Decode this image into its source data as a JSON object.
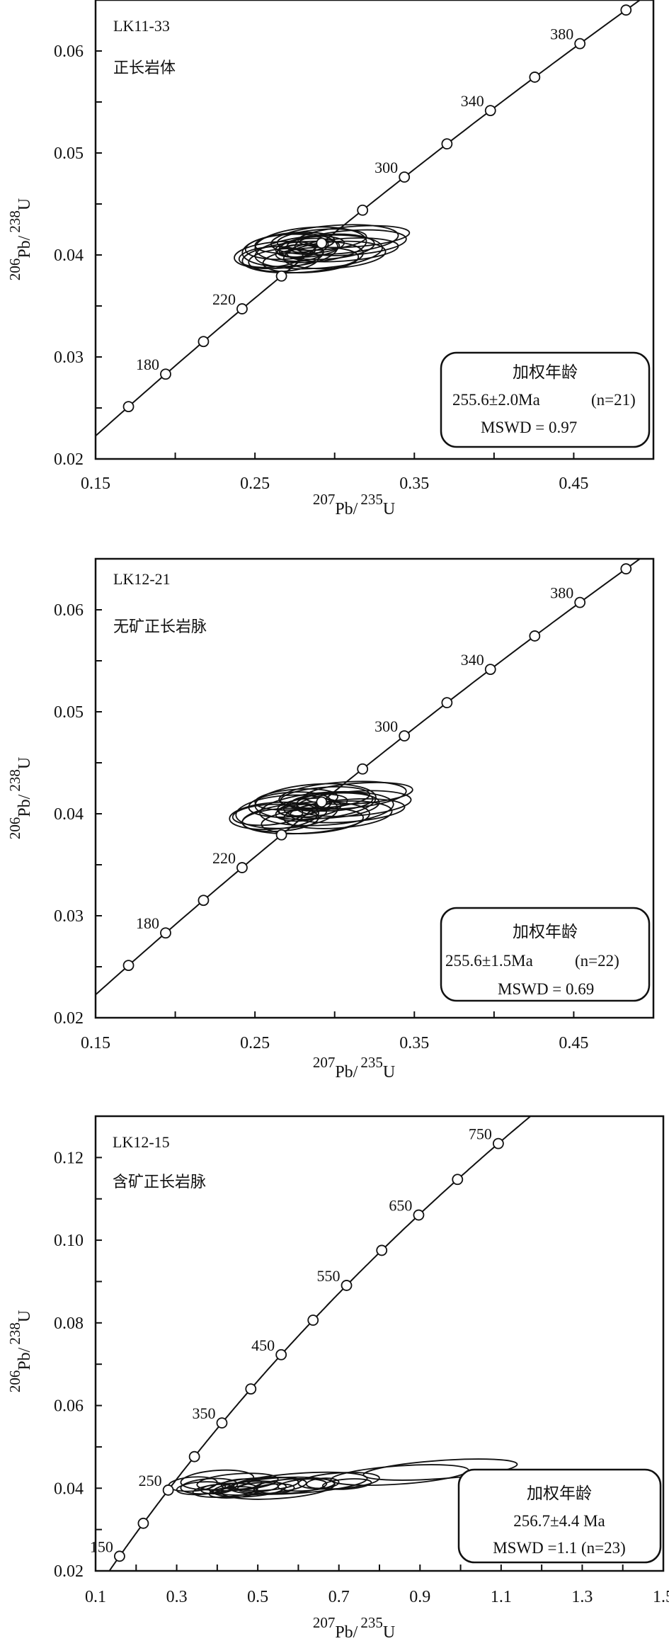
{
  "chart_data": [
    {
      "type": "scatter",
      "subtype": "U-Pb concordia diagram with error ellipses",
      "sample": "LK11-33",
      "rock_type": "正长岩体",
      "xlabel": {
        "mass1": "207",
        "el1": "Pb/",
        "mass2": "235",
        "el2": "U"
      },
      "ylabel": {
        "mass1": "206",
        "el1": "Pb/",
        "mass2": "238",
        "el2": "U"
      },
      "xlim": [
        0.15,
        0.5
      ],
      "ylim": [
        0.02,
        0.065
      ],
      "xticks": [
        "0.15",
        "0.25",
        "0.35",
        "0.45"
      ],
      "xminor": [
        0.2,
        0.3,
        0.4
      ],
      "yticks": [
        "0.02",
        "0.03",
        "0.04",
        "0.05",
        "0.06"
      ],
      "yminor": [
        0.025,
        0.035,
        0.045,
        0.055
      ],
      "concordia_ages_ma": [
        160,
        180,
        200,
        220,
        240,
        260,
        280,
        300,
        320,
        340,
        360,
        380,
        400
      ],
      "concordia_labels": [
        "180",
        "220",
        "300",
        "340",
        "380"
      ],
      "ellipses_cx_cy_rx_ry": [
        [
          0.272,
          0.0405,
          0.03,
          0.0016
        ],
        [
          0.285,
          0.041,
          0.035,
          0.0017
        ],
        [
          0.3,
          0.0415,
          0.04,
          0.0014
        ],
        [
          0.31,
          0.0412,
          0.035,
          0.0012
        ],
        [
          0.265,
          0.04,
          0.028,
          0.0013
        ],
        [
          0.28,
          0.0398,
          0.038,
          0.0015
        ],
        [
          0.29,
          0.0403,
          0.04,
          0.0016
        ],
        [
          0.275,
          0.0412,
          0.025,
          0.001
        ],
        [
          0.295,
          0.0408,
          0.03,
          0.0012
        ],
        [
          0.268,
          0.0395,
          0.022,
          0.0011
        ],
        [
          0.283,
          0.0407,
          0.02,
          0.0009
        ],
        [
          0.305,
          0.0405,
          0.035,
          0.0011
        ],
        [
          0.278,
          0.0402,
          0.015,
          0.0008
        ],
        [
          0.288,
          0.041,
          0.018,
          0.0008
        ],
        [
          0.26,
          0.0398,
          0.02,
          0.001
        ],
        [
          0.3,
          0.04,
          0.032,
          0.0013
        ],
        [
          0.292,
          0.0415,
          0.028,
          0.001
        ],
        [
          0.27,
          0.0408,
          0.026,
          0.0012
        ],
        [
          0.285,
          0.0395,
          0.03,
          0.0012
        ],
        [
          0.312,
          0.0418,
          0.035,
          0.001
        ],
        [
          0.276,
          0.0404,
          0.012,
          0.0006
        ]
      ],
      "box": {
        "title": "加权年龄",
        "age": "255.6±2.0Ma",
        "n": "(n=21)",
        "mswd": "MSWD = 0.97"
      }
    },
    {
      "type": "scatter",
      "subtype": "U-Pb concordia diagram with error ellipses",
      "sample": "LK12-21",
      "rock_type": "无矿正长岩脉",
      "xlabel": {
        "mass1": "207",
        "el1": "Pb/",
        "mass2": "235",
        "el2": "U"
      },
      "ylabel": {
        "mass1": "206",
        "el1": "Pb/",
        "mass2": "238",
        "el2": "U"
      },
      "xlim": [
        0.15,
        0.5
      ],
      "ylim": [
        0.02,
        0.065
      ],
      "xticks": [
        "0.15",
        "0.25",
        "0.35",
        "0.45"
      ],
      "xminor": [
        0.2,
        0.3,
        0.4
      ],
      "yticks": [
        "0.02",
        "0.03",
        "0.04",
        "0.05",
        "0.06"
      ],
      "yminor": [
        0.025,
        0.035,
        0.045,
        0.055
      ],
      "concordia_ages_ma": [
        160,
        180,
        200,
        220,
        240,
        260,
        280,
        300,
        320,
        340,
        360,
        380,
        400
      ],
      "concordia_labels": [
        "180",
        "220",
        "300",
        "340",
        "380"
      ],
      "ellipses_cx_cy_rx_ry": [
        [
          0.27,
          0.0402,
          0.032,
          0.0016
        ],
        [
          0.288,
          0.0412,
          0.038,
          0.0017
        ],
        [
          0.305,
          0.0418,
          0.04,
          0.0013
        ],
        [
          0.312,
          0.041,
          0.036,
          0.0012
        ],
        [
          0.262,
          0.0398,
          0.028,
          0.0013
        ],
        [
          0.282,
          0.0396,
          0.04,
          0.0015
        ],
        [
          0.295,
          0.0405,
          0.042,
          0.0016
        ],
        [
          0.276,
          0.0414,
          0.026,
          0.001
        ],
        [
          0.298,
          0.0408,
          0.03,
          0.0012
        ],
        [
          0.266,
          0.0394,
          0.024,
          0.0011
        ],
        [
          0.284,
          0.0406,
          0.02,
          0.0009
        ],
        [
          0.308,
          0.0403,
          0.036,
          0.0011
        ],
        [
          0.279,
          0.0401,
          0.016,
          0.0008
        ],
        [
          0.29,
          0.0411,
          0.018,
          0.0008
        ],
        [
          0.258,
          0.0399,
          0.022,
          0.001
        ],
        [
          0.302,
          0.0399,
          0.034,
          0.0013
        ],
        [
          0.294,
          0.0416,
          0.028,
          0.001
        ],
        [
          0.272,
          0.0409,
          0.026,
          0.0012
        ],
        [
          0.286,
          0.0393,
          0.032,
          0.0012
        ],
        [
          0.315,
          0.042,
          0.034,
          0.001
        ],
        [
          0.277,
          0.0404,
          0.012,
          0.0006
        ],
        [
          0.3,
          0.0412,
          0.024,
          0.0009
        ]
      ],
      "box": {
        "title": "加权年龄",
        "age": "255.6±1.5Ma",
        "n": "(n=22)",
        "mswd": "MSWD = 0.69"
      }
    },
    {
      "type": "scatter",
      "subtype": "U-Pb concordia diagram with error ellipses",
      "sample": "LK12-15",
      "rock_type": "含矿正长岩脉",
      "xlabel": {
        "mass1": "207",
        "el1": "Pb/",
        "mass2": "235",
        "el2": "U"
      },
      "ylabel": {
        "mass1": "206",
        "el1": "Pb/",
        "mass2": "238",
        "el2": "U"
      },
      "xlim": [
        0.1,
        1.5
      ],
      "ylim": [
        0.02,
        0.13
      ],
      "xticks": [
        "0.1",
        "0.3",
        "0.5",
        "0.7",
        "0.9",
        "1.1",
        "1.3",
        "1.5"
      ],
      "xminor": [
        0.2,
        0.4,
        0.6,
        0.8,
        1.0,
        1.2,
        1.4
      ],
      "yticks": [
        "0.02",
        "0.04",
        "0.06",
        "0.08",
        "0.10",
        "0.12"
      ],
      "yminor": [
        0.03,
        0.05,
        0.07,
        0.09,
        0.11
      ],
      "concordia_ages_ma": [
        150,
        200,
        250,
        300,
        350,
        400,
        450,
        500,
        550,
        600,
        650,
        700,
        750
      ],
      "concordia_labels": [
        "150",
        "250",
        "350",
        "450",
        "550",
        "650",
        "750"
      ],
      "ellipses_cx_cy_rx_ry": [
        [
          0.95,
          0.0445,
          0.19,
          0.0022
        ],
        [
          0.85,
          0.0432,
          0.17,
          0.0022
        ],
        [
          0.7,
          0.0418,
          0.1,
          0.0019
        ],
        [
          0.6,
          0.0412,
          0.17,
          0.0024
        ],
        [
          0.55,
          0.04,
          0.14,
          0.0025
        ],
        [
          0.5,
          0.0405,
          0.12,
          0.002
        ],
        [
          0.45,
          0.0415,
          0.1,
          0.002
        ],
        [
          0.4,
          0.042,
          0.09,
          0.0023
        ],
        [
          0.38,
          0.0405,
          0.07,
          0.0018
        ],
        [
          0.36,
          0.04,
          0.06,
          0.0015
        ],
        [
          0.42,
          0.0395,
          0.08,
          0.0016
        ],
        [
          0.48,
          0.0398,
          0.09,
          0.0018
        ],
        [
          0.52,
          0.041,
          0.08,
          0.0015
        ],
        [
          0.58,
          0.0405,
          0.09,
          0.0017
        ],
        [
          0.62,
          0.0408,
          0.07,
          0.0014
        ],
        [
          0.34,
          0.041,
          0.06,
          0.0017
        ],
        [
          0.44,
          0.039,
          0.06,
          0.0013
        ],
        [
          0.46,
          0.041,
          0.05,
          0.0012
        ],
        [
          0.54,
          0.0398,
          0.05,
          0.0012
        ],
        [
          0.66,
          0.0412,
          0.04,
          0.0012
        ],
        [
          0.4,
          0.0398,
          0.04,
          0.0011
        ],
        [
          0.5,
          0.0402,
          0.05,
          0.0011
        ],
        [
          0.72,
          0.041,
          0.06,
          0.0012
        ]
      ],
      "box": {
        "title": "加权年龄",
        "age": "256.7±4.4 Ma",
        "n": "",
        "mswd": "MSWD =1.1 (n=23)"
      }
    }
  ]
}
